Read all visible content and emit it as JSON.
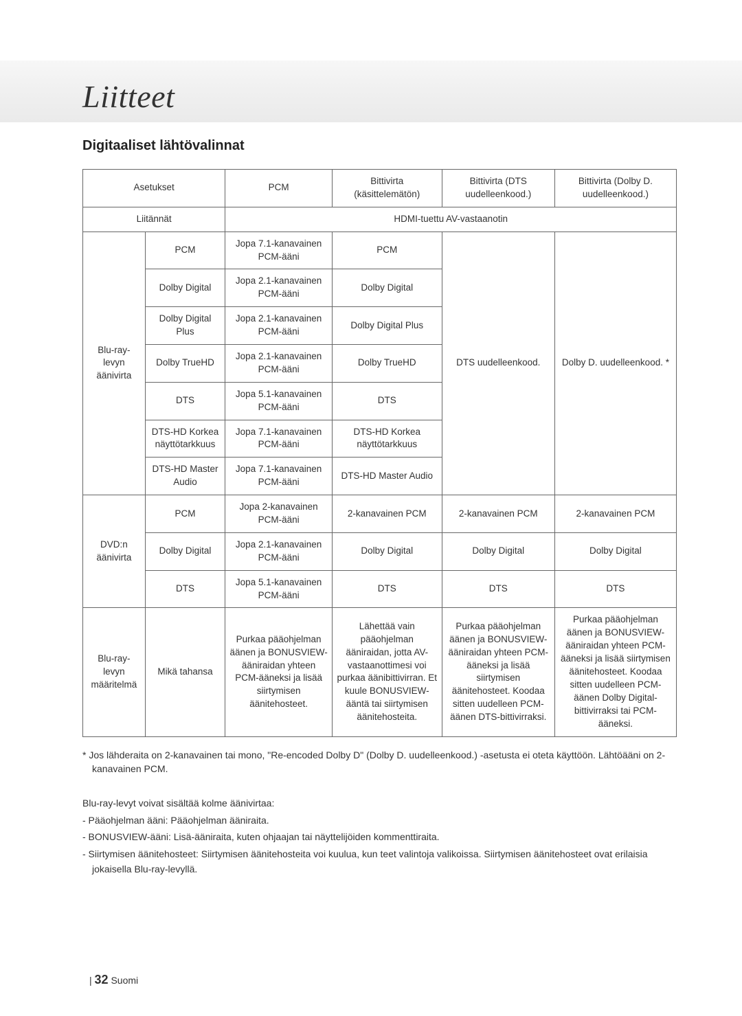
{
  "title": "Liitteet",
  "section_title": "Digitaaliset lähtövalinnat",
  "header_row1": {
    "c0": "Asetukset",
    "c2": "PCM",
    "c3": "Bittivirta (käsittelemätön)",
    "c4": "Bittivirta (DTS uudelleenkood.)",
    "c5": "Bittivirta (Dolby D. uudelleenkood.)"
  },
  "header_row2": {
    "c0": "Liitännät",
    "c2": "HDMI-tuettu AV-vastaanotin"
  },
  "groups": {
    "bluray": "Blu-ray-levyn äänivirta",
    "dvd": "DVD:n äänivirta",
    "def": "Blu-ray-levyn määritelmä"
  },
  "rows": {
    "r0": {
      "label": "PCM",
      "pcm": "Jopa 7.1-kanavainen PCM-ääni",
      "bs": "PCM"
    },
    "r1": {
      "label": "Dolby Digital",
      "pcm": "Jopa 2.1-kanavainen PCM-ääni",
      "bs": "Dolby Digital"
    },
    "r2": {
      "label": "Dolby Digital Plus",
      "pcm": "Jopa 2.1-kanavainen PCM-ääni",
      "bs": "Dolby Digital Plus"
    },
    "r3": {
      "label": "Dolby TrueHD",
      "pcm": "Jopa 2.1-kanavainen PCM-ääni",
      "bs": "Dolby TrueHD"
    },
    "r4": {
      "label": "DTS",
      "pcm": "Jopa 5.1-kanavainen PCM-ääni",
      "bs": "DTS"
    },
    "r5": {
      "label": "DTS-HD Korkea näyttötarkkuus",
      "pcm": "Jopa 7.1-kanavainen PCM-ääni",
      "bs": "DTS-HD Korkea näyttötarkkuus"
    },
    "r6": {
      "label": "DTS-HD Master Audio",
      "pcm": "Jopa 7.1-kanavainen PCM-ääni",
      "bs": "DTS-HD Master Audio"
    },
    "r7": {
      "label": "PCM",
      "pcm": "Jopa 2-kanavainen PCM-ääni",
      "bs": "2-kanavainen PCM",
      "dts": "2-kanavainen PCM",
      "dd": "2-kanavainen PCM"
    },
    "r8": {
      "label": "Dolby Digital",
      "pcm": "Jopa 2.1-kanavainen PCM-ääni",
      "bs": "Dolby Digital",
      "dts": "Dolby Digital",
      "dd": "Dolby Digital"
    },
    "r9": {
      "label": "DTS",
      "pcm": "Jopa 5.1-kanavainen PCM-ääni",
      "bs": "DTS",
      "dts": "DTS",
      "dd": "DTS"
    },
    "r10": {
      "label": "Mikä tahansa",
      "pcm": "Purkaa pääohjelman äänen ja BONUSVIEW-ääniraidan yhteen PCM-ääneksi ja lisää siirtymisen äänitehosteet.",
      "bs": "Lähettää vain pääohjelman ääniraidan, jotta AV-vastaanottimesi voi purkaa äänibittivirran. Et kuule BONUSVIEW-ääntä tai siirtymisen äänitehosteita.",
      "dts": "Purkaa pääohjelman äänen ja BONUSVIEW-ääniraidan yhteen PCM-ääneksi ja lisää siirtymisen äänitehosteet. Koodaa sitten uudelleen PCM-äänen DTS-bittivirraksi.",
      "dd": "Purkaa pääohjelman äänen ja BONUSVIEW-ääniraidan yhteen PCM-ääneksi ja lisää siirtymisen äänitehosteet. Koodaa sitten uudelleen PCM-äänen Dolby Digital-bittivirraksi tai PCM-ääneksi."
    }
  },
  "merged": {
    "dts_br": "DTS uudelleenkood.",
    "dd_br": "Dolby D. uudelleenkood. *"
  },
  "footnote": "*  Jos lähderaita on 2-kanavainen tai mono, \"Re-encoded Dolby D\" (Dolby D. uudelleenkood.) -asetusta ei oteta käyttöön. Lähtöääni on 2-kanavainen PCM.",
  "notes": {
    "intro": "Blu-ray-levyt voivat sisältää kolme äänivirtaa:",
    "i1": "-  Pääohjelman ääni: Pääohjelman ääniraita.",
    "i2": "-  BONUSVIEW-ääni: Lisä-ääniraita, kuten ohjaajan tai näyttelijöiden kommenttiraita.",
    "i3": "-  Siirtymisen äänitehosteet: Siirtymisen äänitehosteita voi kuulua, kun teet valintoja valikoissa. Siirtymisen äänitehosteet ovat erilaisia jokaisella Blu-ray-levyllä."
  },
  "page_number": "32",
  "page_lang": "Suomi"
}
